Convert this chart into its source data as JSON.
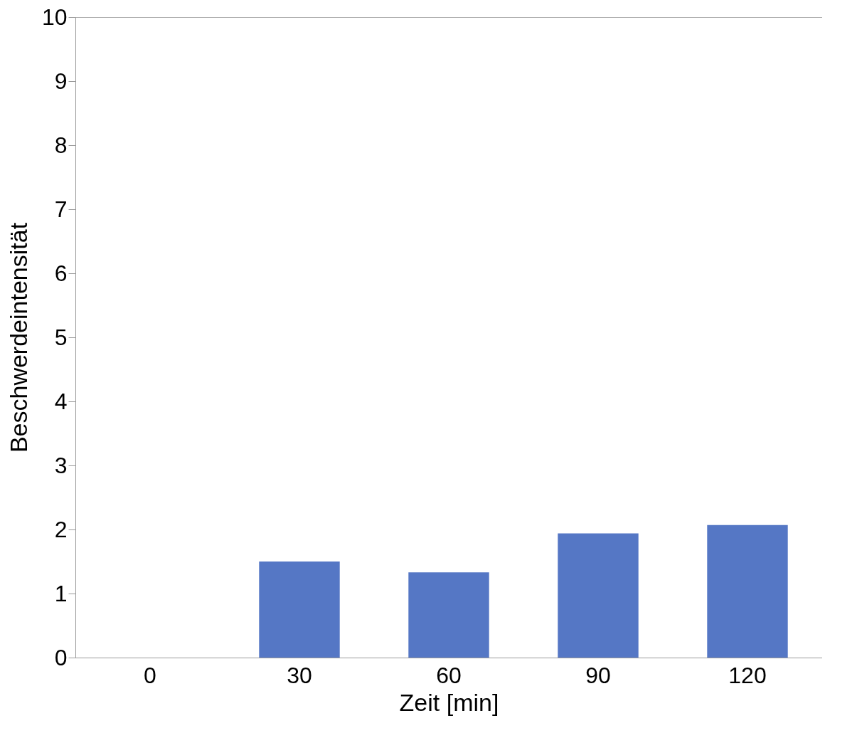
{
  "chart_data": {
    "type": "bar",
    "xlabel": "Zeit [min]",
    "ylabel": "Beschwerdeintensität",
    "categories": [
      "0",
      "30",
      "60",
      "90",
      "120"
    ],
    "values": [
      0,
      1.5,
      1.33,
      1.94,
      2.07
    ],
    "color": "#5577c5",
    "ylim": [
      0,
      10
    ],
    "yticks": [
      0,
      1,
      2,
      3,
      4,
      5,
      6,
      7,
      8,
      9,
      10
    ],
    "grid": false
  }
}
